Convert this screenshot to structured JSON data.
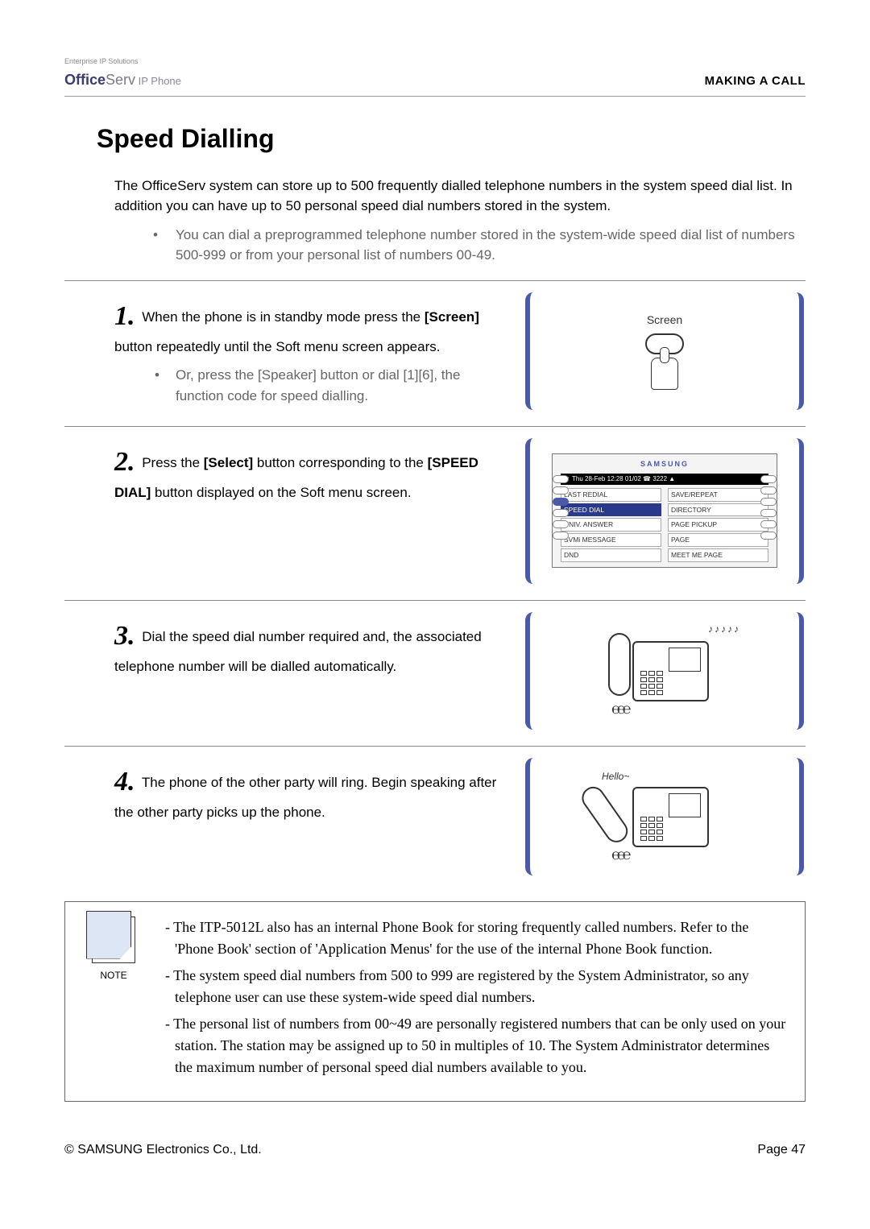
{
  "header": {
    "tagline": "Enterprise IP Solutions",
    "logo_bold": "Office",
    "logo_light": "Serv",
    "logo_sub": " IP Phone",
    "section": "MAKING A CALL"
  },
  "title": "Speed Dialling",
  "intro": {
    "p1": "The OfficeServ system can store up to 500 frequently dialled telephone numbers  in the system speed dial list. In addition you can have up to 50 personal speed dial numbers stored in the system.",
    "bullet": "You can dial a preprogrammed telephone number stored in the system-wide speed dial list of numbers 500-999 or from your personal list of numbers 00-49."
  },
  "steps": [
    {
      "num": "1.",
      "main_before": " When the phone is in standby mode press the ",
      "bold1": "[Screen]",
      "main_after": " button repeatedly until the Soft menu screen appears.",
      "sub": "Or, press the [Speaker] button or dial [1][6], the function code for speed dialling.",
      "illus": "screen-button",
      "screen_label": "Screen"
    },
    {
      "num": "2.",
      "main_before": " Press the ",
      "bold1": "[Select]",
      "main_mid": " button corresponding to the ",
      "bold2": "[SPEED DIAL]",
      "main_after": " button displayed on the Soft menu screen.",
      "illus": "menu",
      "menu": {
        "brand": "SAMSUNG",
        "datebar": "▼  Thu 28-Feb 12:28 01/02 ☎ 3222   ▲",
        "items": [
          "LAST REDIAL",
          "SAVE/REPEAT",
          "SPEED DIAL",
          "DIRECTORY",
          "UNIV. ANSWER",
          "PAGE PICKUP",
          "SVMi MESSAGE",
          "PAGE",
          "DND",
          "MEET ME PAGE"
        ],
        "selected_index": 2
      }
    },
    {
      "num": "3.",
      "main": " Dial the speed dial number required and, the associated telephone number will be dialled automatically.",
      "illus": "phone-notes",
      "notes": "♪♪♪♪♪"
    },
    {
      "num": "4.",
      "main": " The phone of the other party will ring. Begin speaking after the other party picks up the phone.",
      "illus": "phone-hello",
      "hello": "Hello~"
    }
  ],
  "note": {
    "label": "NOTE",
    "items": [
      "- The ITP-5012L also has an internal Phone Book for storing frequently called numbers. Refer to the 'Phone Book' section of 'Application Menus' for the use of the internal Phone Book function.",
      "- The system speed dial numbers from 500 to 999 are registered by the System Administrator, so any telephone user can use these system-wide speed dial numbers.",
      "- The personal list of numbers from 00~49 are personally registered numbers that can be only used on your station. The station may be assigned up to 50 in  multiples of 10. The System Administrator determines the maximum number of personal speed dial numbers available to you."
    ]
  },
  "footer": {
    "copyright": "© SAMSUNG Electronics Co., Ltd.",
    "page": "Page 47"
  },
  "colors": {
    "accent": "#4a5aa8",
    "text": "#000000",
    "muted": "#666666",
    "border": "#888888"
  }
}
